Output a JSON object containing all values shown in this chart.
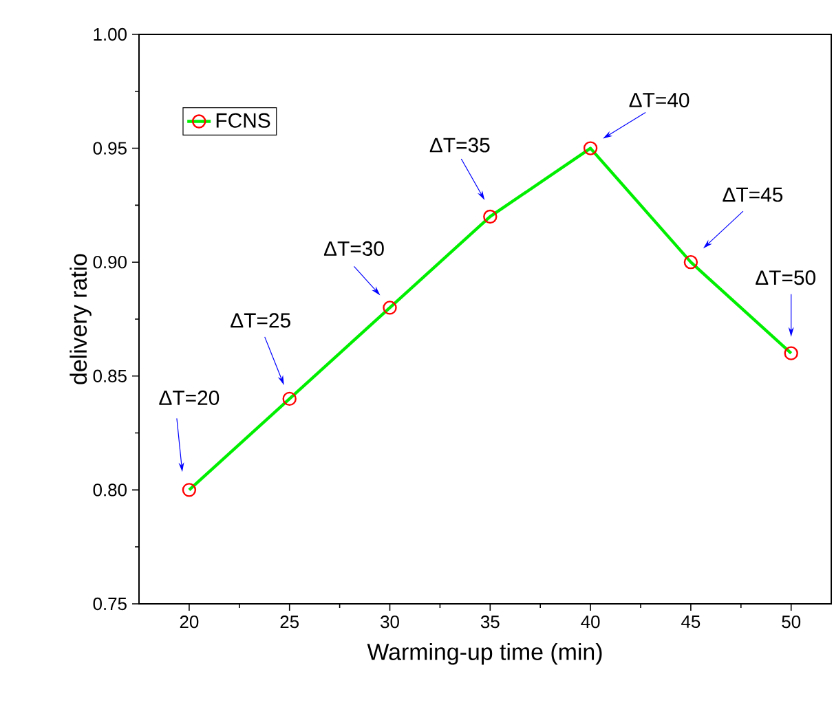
{
  "chart_data": {
    "type": "line",
    "xlabel": "Warming-up time (min)",
    "ylabel": "delivery ratio",
    "x": [
      20,
      25,
      30,
      35,
      40,
      45,
      50
    ],
    "series": [
      {
        "name": "FCNS",
        "color": "#00ee00",
        "values": [
          0.8,
          0.84,
          0.88,
          0.92,
          0.95,
          0.9,
          0.86
        ]
      }
    ],
    "xlim": [
      17.5,
      52
    ],
    "xticks": [
      20,
      25,
      30,
      35,
      40,
      45,
      50
    ],
    "ylim": [
      0.75,
      1.0
    ],
    "yticks": [
      {
        "value": 0.75,
        "label": "0.75"
      },
      {
        "value": 0.8,
        "label": "0.80"
      },
      {
        "value": 0.85,
        "label": "0.85"
      },
      {
        "value": 0.9,
        "label": "0.90"
      },
      {
        "value": 0.95,
        "label": "0.95"
      },
      {
        "value": 1.0,
        "label": "1.00"
      }
    ],
    "marker": "circle",
    "line_style": "solid",
    "legend": "top left",
    "grid": false,
    "annotations": [
      "ΔT=20",
      "ΔT=25",
      "ΔT=30",
      "ΔT=35",
      "ΔT=40",
      "ΔT=45",
      "ΔT=50"
    ]
  }
}
